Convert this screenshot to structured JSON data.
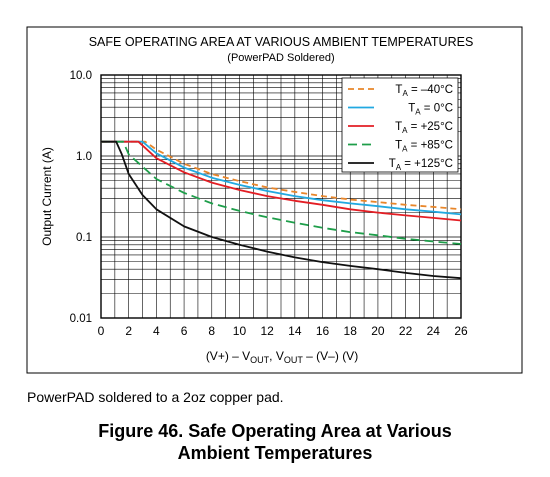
{
  "chart_data": {
    "type": "line",
    "title": "SAFE OPERATING AREA AT VARIOUS AMBIENT TEMPERATURES",
    "subtitle": "(PowerPAD Soldered)",
    "xlabel": "(V+) – V<sub>OUT</sub>, V<sub>OUT</sub> – (V–) (V)",
    "ylabel": "Output Current (A)",
    "xlim": [
      0,
      26
    ],
    "ylim": [
      0.01,
      10
    ],
    "yscale": "log",
    "xticks": [
      0,
      2,
      4,
      6,
      8,
      10,
      12,
      14,
      16,
      18,
      20,
      22,
      24,
      26
    ],
    "yticks": [
      0.01,
      0.1,
      1.0,
      10.0
    ],
    "ytick_labels": [
      "0.01",
      "0.1",
      "1.0",
      "10.0"
    ],
    "grid": true,
    "legend_position": "top-right",
    "series": [
      {
        "name": "T<sub>A</sub> = –40°C",
        "color": "#e8862a",
        "dash": "6,4",
        "x": [
          0,
          3.2,
          4,
          6,
          8,
          10,
          12,
          14,
          16,
          18,
          20,
          22,
          24,
          26
        ],
        "y": [
          1.5,
          1.5,
          1.2,
          0.8,
          0.6,
          0.49,
          0.41,
          0.36,
          0.32,
          0.29,
          0.27,
          0.25,
          0.235,
          0.22
        ]
      },
      {
        "name": "T<sub>A</sub> = 0°C",
        "color": "#21a9e1",
        "dash": "",
        "x": [
          0,
          3,
          4,
          6,
          8,
          10,
          12,
          14,
          16,
          18,
          20,
          22,
          24,
          26
        ],
        "y": [
          1.5,
          1.5,
          1.08,
          0.72,
          0.54,
          0.44,
          0.37,
          0.32,
          0.285,
          0.26,
          0.24,
          0.22,
          0.205,
          0.19
        ]
      },
      {
        "name": "T<sub>A</sub> = +25°C",
        "color": "#e31e24",
        "dash": "",
        "x": [
          0,
          2.7,
          4,
          6,
          8,
          10,
          12,
          14,
          16,
          18,
          20,
          22,
          24,
          26
        ],
        "y": [
          1.5,
          1.5,
          0.94,
          0.63,
          0.47,
          0.38,
          0.32,
          0.28,
          0.25,
          0.22,
          0.2,
          0.185,
          0.172,
          0.16
        ]
      },
      {
        "name": "T<sub>A</sub> = +85°C",
        "color": "#1e9e4a",
        "dash": "9,5",
        "x": [
          0,
          1.6,
          2,
          4,
          6,
          8,
          10,
          12,
          14,
          16,
          18,
          20,
          22,
          24,
          26
        ],
        "y": [
          1.5,
          1.5,
          1.05,
          0.52,
          0.35,
          0.26,
          0.21,
          0.175,
          0.15,
          0.13,
          0.115,
          0.105,
          0.095,
          0.088,
          0.082
        ]
      },
      {
        "name": "T<sub>A</sub> = +125°C",
        "color": "#111111",
        "dash": "",
        "x": [
          0,
          1.1,
          1.5,
          2,
          3,
          4,
          6,
          8,
          10,
          12,
          14,
          16,
          18,
          20,
          22,
          24,
          26
        ],
        "y": [
          1.5,
          1.5,
          1.05,
          0.6,
          0.33,
          0.22,
          0.135,
          0.1,
          0.08,
          0.066,
          0.056,
          0.049,
          0.044,
          0.04,
          0.036,
          0.033,
          0.031
        ]
      }
    ]
  },
  "caption": "PowerPAD soldered to a 2oz copper pad.",
  "figure_title_line1": "Figure 46.  Safe Operating Area at Various",
  "figure_title_line2": "Ambient Temperatures"
}
